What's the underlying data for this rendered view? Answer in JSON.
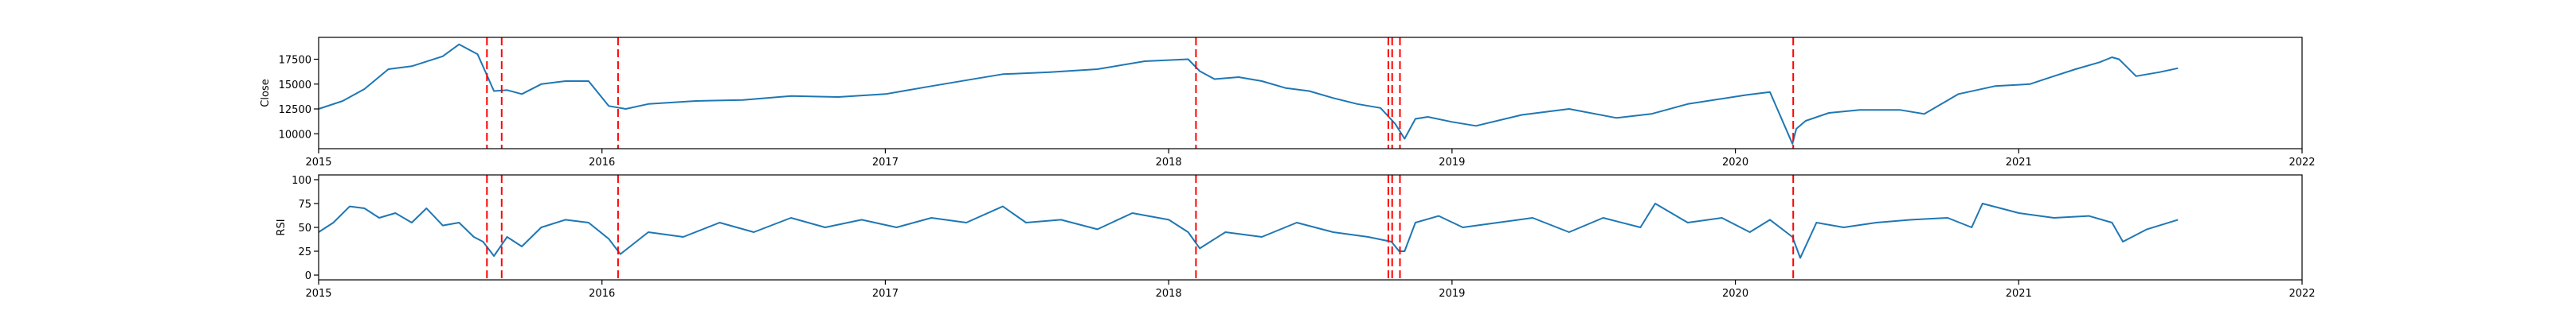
{
  "chart_data": [
    {
      "type": "line",
      "ylabel": "Close",
      "xlim": [
        "2015-01-01",
        "2022-01-01"
      ],
      "ylim": [
        8500,
        19700
      ],
      "x_tick_labels": [
        "2015",
        "2016",
        "2017",
        "2018",
        "2019",
        "2020",
        "2021",
        "2022"
      ],
      "y_ticks": [
        10000,
        12500,
        15000,
        17500
      ],
      "y_tick_labels": [
        "10000",
        "12500",
        "15000",
        "17500"
      ],
      "series_color": "#1f77b4",
      "grid": false,
      "series": [
        {
          "x": [
            "2015-01-01",
            "2015-02-01",
            "2015-03-01",
            "2015-04-01",
            "2015-05-01",
            "2015-06-10",
            "2015-07-01",
            "2015-07-25",
            "2015-08-15",
            "2015-09-01",
            "2015-09-20",
            "2015-10-15",
            "2015-11-15",
            "2015-12-15",
            "2016-01-10",
            "2016-02-01",
            "2016-03-01",
            "2016-05-01",
            "2016-07-01",
            "2016-09-01",
            "2016-11-01",
            "2017-01-01",
            "2017-03-01",
            "2017-05-01",
            "2017-06-01",
            "2017-08-01",
            "2017-10-01",
            "2017-12-01",
            "2018-01-26",
            "2018-02-10",
            "2018-03-01",
            "2018-04-01",
            "2018-05-01",
            "2018-06-01",
            "2018-07-01",
            "2018-08-01",
            "2018-09-01",
            "2018-10-01",
            "2018-10-20",
            "2018-11-01",
            "2018-11-15",
            "2018-12-01",
            "2019-01-01",
            "2019-02-01",
            "2019-04-01",
            "2019-06-01",
            "2019-08-01",
            "2019-09-15",
            "2019-11-01",
            "2020-01-15",
            "2020-02-15",
            "2020-03-15",
            "2020-03-20",
            "2020-04-01",
            "2020-05-01",
            "2020-06-10",
            "2020-08-01",
            "2020-09-01",
            "2020-10-15",
            "2020-12-01",
            "2021-01-15",
            "2021-02-15",
            "2021-03-15",
            "2021-04-15",
            "2021-05-01",
            "2021-05-10",
            "2021-06-01",
            "2021-07-01",
            "2021-07-25"
          ],
          "values": [
            12500,
            13300,
            14500,
            16500,
            16800,
            17800,
            19000,
            18000,
            14300,
            14400,
            14000,
            15000,
            15300,
            15300,
            12800,
            12500,
            13000,
            13300,
            13400,
            13800,
            13700,
            14000,
            14800,
            15600,
            16000,
            16200,
            16500,
            17300,
            17500,
            16300,
            15500,
            15700,
            15300,
            14600,
            14300,
            13600,
            13000,
            12600,
            11000,
            9500,
            11500,
            11700,
            11200,
            10800,
            11900,
            12500,
            11600,
            12000,
            13000,
            13900,
            14200,
            9000,
            10500,
            11300,
            12100,
            12400,
            12400,
            12000,
            14000,
            14800,
            15000,
            15800,
            16500,
            17200,
            17700,
            17500,
            15800,
            16200,
            16600
          ]
        }
      ]
    },
    {
      "type": "line",
      "ylabel": "RSI",
      "xlim": [
        "2015-01-01",
        "2022-01-01"
      ],
      "ylim": [
        -5,
        105
      ],
      "x_tick_labels": [
        "2015",
        "2016",
        "2017",
        "2018",
        "2019",
        "2020",
        "2021",
        "2022"
      ],
      "y_ticks": [
        0,
        25,
        50,
        75,
        100
      ],
      "y_tick_labels": [
        "0",
        "25",
        "50",
        "75",
        "100"
      ],
      "series_color": "#1f77b4",
      "grid": false,
      "series": [
        {
          "x": [
            "2015-01-01",
            "2015-01-20",
            "2015-02-10",
            "2015-03-01",
            "2015-03-20",
            "2015-04-10",
            "2015-05-01",
            "2015-05-20",
            "2015-06-10",
            "2015-07-01",
            "2015-07-20",
            "2015-08-01",
            "2015-08-15",
            "2015-09-01",
            "2015-09-20",
            "2015-10-15",
            "2015-11-15",
            "2015-12-15",
            "2016-01-10",
            "2016-01-25",
            "2016-03-01",
            "2016-04-15",
            "2016-06-01",
            "2016-07-15",
            "2016-09-01",
            "2016-10-15",
            "2016-12-01",
            "2017-01-15",
            "2017-03-01",
            "2017-04-15",
            "2017-06-01",
            "2017-07-01",
            "2017-08-15",
            "2017-10-01",
            "2017-11-15",
            "2018-01-01",
            "2018-01-26",
            "2018-02-10",
            "2018-03-15",
            "2018-05-01",
            "2018-06-15",
            "2018-08-01",
            "2018-09-15",
            "2018-10-15",
            "2018-10-25",
            "2018-11-01",
            "2018-11-15",
            "2018-12-15",
            "2019-01-15",
            "2019-03-01",
            "2019-04-15",
            "2019-06-01",
            "2019-07-15",
            "2019-09-01",
            "2019-09-20",
            "2019-11-01",
            "2019-12-15",
            "2020-01-20",
            "2020-02-15",
            "2020-03-15",
            "2020-03-25",
            "2020-04-15",
            "2020-05-20",
            "2020-07-01",
            "2020-08-15",
            "2020-10-01",
            "2020-11-01",
            "2020-11-15",
            "2021-01-01",
            "2021-02-15",
            "2021-04-01",
            "2021-05-01",
            "2021-05-15",
            "2021-06-15",
            "2021-07-25"
          ],
          "values": [
            45,
            55,
            72,
            70,
            60,
            65,
            55,
            70,
            52,
            55,
            40,
            35,
            20,
            40,
            30,
            50,
            58,
            55,
            38,
            22,
            45,
            40,
            55,
            45,
            60,
            50,
            58,
            50,
            60,
            55,
            72,
            55,
            58,
            48,
            65,
            58,
            45,
            28,
            45,
            40,
            55,
            45,
            40,
            35,
            25,
            25,
            55,
            62,
            50,
            55,
            60,
            45,
            60,
            50,
            75,
            55,
            60,
            45,
            58,
            40,
            18,
            55,
            50,
            55,
            58,
            60,
            50,
            75,
            65,
            60,
            62,
            55,
            35,
            48,
            58
          ]
        }
      ]
    }
  ],
  "vlines": {
    "color": "#ff0000",
    "dates": [
      "2015-08-06",
      "2015-08-25",
      "2016-01-22",
      "2018-02-05",
      "2018-10-11",
      "2018-10-16",
      "2018-10-26",
      "2020-03-16"
    ]
  }
}
